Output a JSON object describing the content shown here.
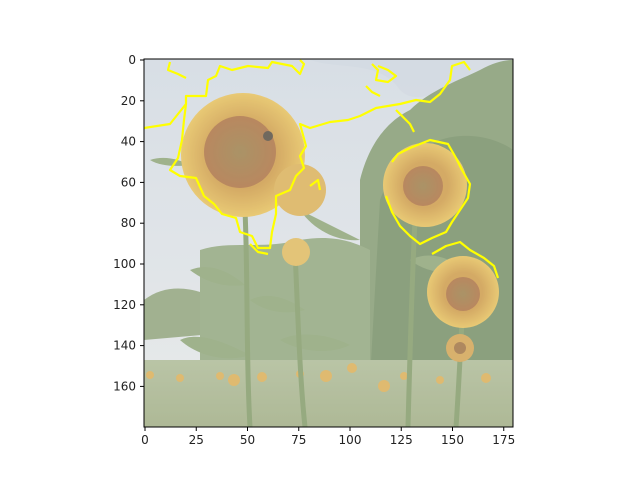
{
  "figure": {
    "background": "#ffffff",
    "overlay_color": "#ffff00"
  },
  "image": {
    "subject": "sunflower field with trees and cloudy sky, washed-out with yellow segmentation contour overlay"
  },
  "axes": {
    "x_ticks": [
      "0",
      "25",
      "50",
      "75",
      "100",
      "125",
      "150",
      "175"
    ],
    "y_ticks": [
      "0",
      "20",
      "40",
      "60",
      "80",
      "100",
      "120",
      "140",
      "160"
    ]
  }
}
